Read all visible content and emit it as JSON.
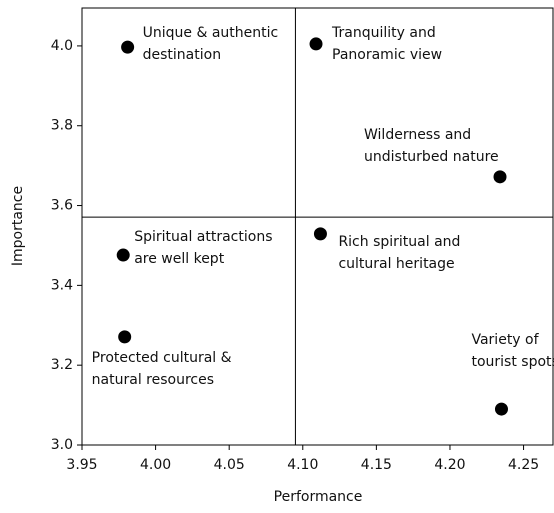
{
  "chart_data": {
    "type": "scatter",
    "x_label": "Performance",
    "y_label": "Importance",
    "x": [
      3.981,
      4.109,
      4.234,
      4.112,
      3.978,
      3.979,
      4.235
    ],
    "y": [
      3.997,
      4.005,
      3.672,
      3.529,
      3.476,
      3.271,
      3.09
    ],
    "labels": [
      [
        "Unique & authentic",
        "destination"
      ],
      [
        "Tranquility and",
        "Panoramic view"
      ],
      [
        "Wilderness and",
        "undisturbed nature"
      ],
      [
        "Rich spiritual and",
        "cultural heritage"
      ],
      [
        "Spiritual attractions",
        "are well kept"
      ],
      [
        "Protected cultural &",
        "natural resources"
      ],
      [
        "Variety of",
        "tourist spots"
      ]
    ],
    "color": "#000000",
    "xlim": [
      3.95,
      4.27
    ],
    "ylim": [
      3.0,
      4.095
    ],
    "xticks": [
      3.95,
      {
        "value": 4,
        "label": "4.00"
      },
      4.05,
      {
        "value": 4.1,
        "label": "4.10"
      },
      4.15,
      {
        "value": 4.2,
        "label": "4.20"
      },
      4.25
    ],
    "yticks": [
      {
        "value": 3,
        "label": "3.0"
      },
      3.2,
      3.4,
      3.6,
      3.8,
      {
        "value": 4,
        "label": "4.0"
      }
    ],
    "xline": 4.095,
    "yline": 3.571
  }
}
